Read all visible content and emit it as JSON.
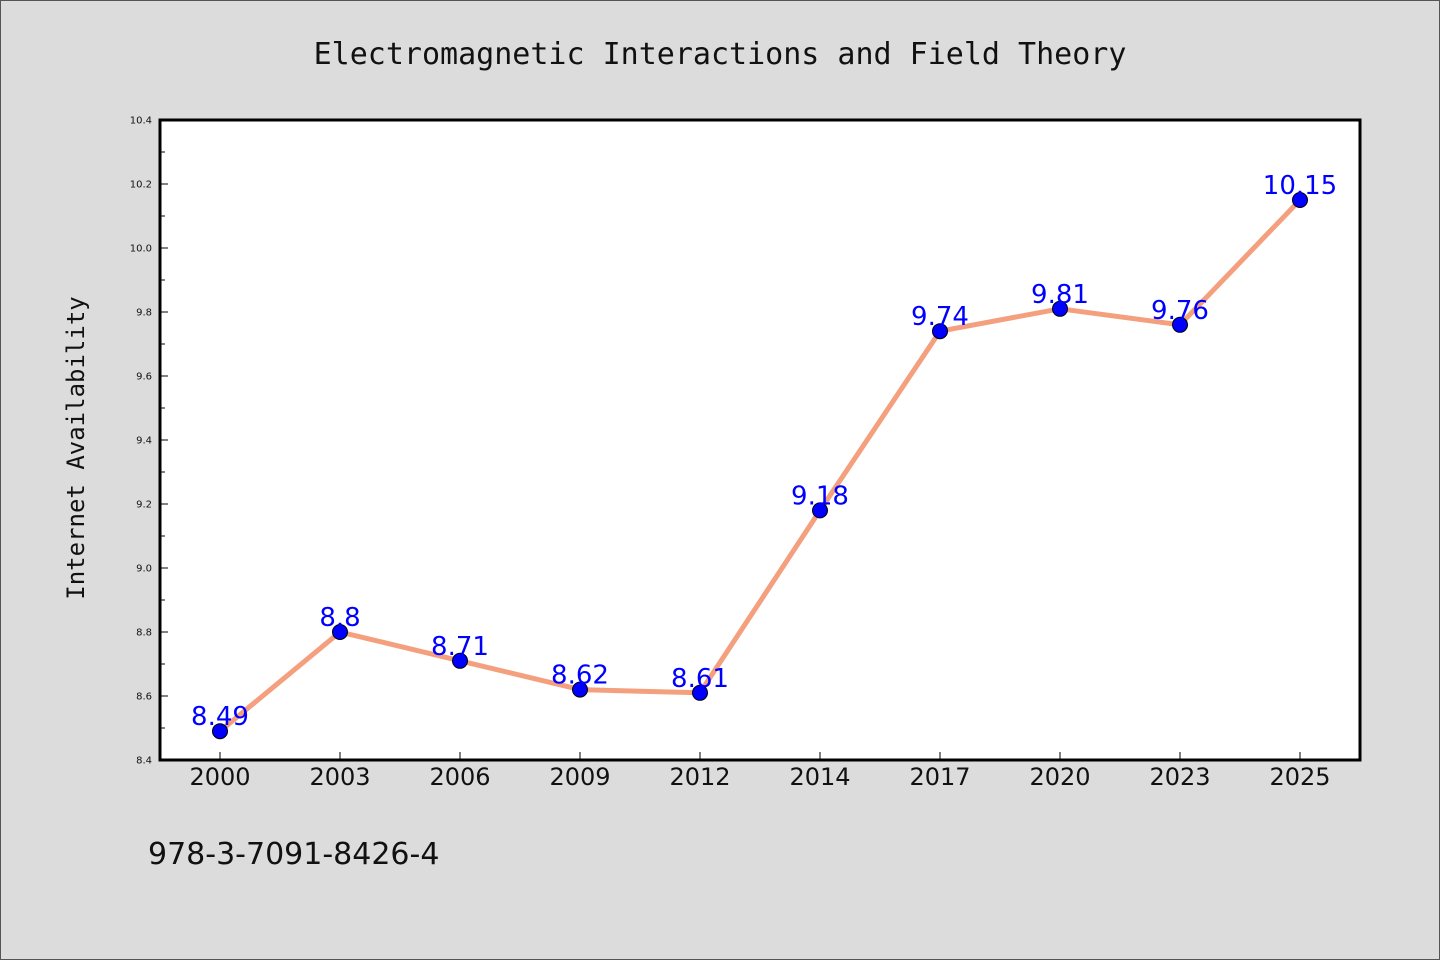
{
  "footer": {
    "code": "978-3-7091-8426-4"
  },
  "chart_data": {
    "type": "line",
    "title": "Electromagnetic Interactions and Field Theory",
    "xlabel": "",
    "ylabel": "Internet Availability",
    "categories": [
      "2000",
      "2003",
      "2006",
      "2009",
      "2012",
      "2014",
      "2017",
      "2020",
      "2023",
      "2025"
    ],
    "series": [
      {
        "values": [
          8.49,
          8.8,
          8.71,
          8.62,
          8.61,
          9.18,
          9.74,
          9.81,
          9.76,
          10.15
        ]
      }
    ],
    "data_labels": [
      "8.49",
      "8.8",
      "8.71",
      "8.62",
      "8.61",
      "9.18",
      "9.74",
      "9.81",
      "9.76",
      "10.15"
    ],
    "ylim": [
      8.4,
      10.4
    ],
    "yticks": [
      "8.4",
      "8.6",
      "8.8",
      "9.0",
      "9.2",
      "9.4",
      "9.6",
      "9.8",
      "10.0",
      "10.2",
      "10.4"
    ],
    "grid": false,
    "legend": "none",
    "colors": {
      "line": "#f4a07e",
      "marker": "#0000ff",
      "label": "#0000ff",
      "figure_background": "#dcdcdc",
      "plot_background": "#ffffff"
    }
  }
}
